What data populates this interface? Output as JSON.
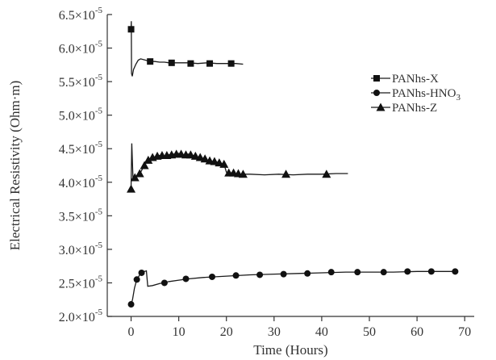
{
  "chart_data": {
    "type": "line",
    "xlabel": "Time (Hours)",
    "ylabel": "Electrical Resistivity (Ohm·m)",
    "xlim": [
      -5,
      72
    ],
    "ylim": [
      2e-05,
      6.5e-05
    ],
    "x_ticks": [
      0,
      10,
      20,
      30,
      40,
      50,
      60,
      70
    ],
    "x_tick_labels": [
      "0",
      "10",
      "20",
      "30",
      "40",
      "50",
      "60",
      "70"
    ],
    "y_ticks": [
      2e-05,
      2.5e-05,
      3e-05,
      3.5e-05,
      4e-05,
      4.5e-05,
      5e-05,
      5.5e-05,
      6e-05,
      6.5e-05
    ],
    "y_tick_labels": [
      {
        "mantissa": "2.0×10",
        "exponent": "-5"
      },
      {
        "mantissa": "2.5×10",
        "exponent": "-5"
      },
      {
        "mantissa": "3.0×10",
        "exponent": "-5"
      },
      {
        "mantissa": "3.5×10",
        "exponent": "-5"
      },
      {
        "mantissa": "4.0×10",
        "exponent": "-5"
      },
      {
        "mantissa": "4.5×10",
        "exponent": "-5"
      },
      {
        "mantissa": "5.0×10",
        "exponent": "-5"
      },
      {
        "mantissa": "5.5×10",
        "exponent": "-5"
      },
      {
        "mantissa": "6.0×10",
        "exponent": "-5"
      },
      {
        "mantissa": "6.5×10",
        "exponent": "-5"
      }
    ],
    "grid": false,
    "legend_position": "right",
    "series": [
      {
        "name": "PANhs-X",
        "marker": "square",
        "line": [
          [
            0,
            6.28e-05
          ],
          [
            0.05,
            6.4e-05
          ],
          [
            0.1,
            5.62e-05
          ],
          [
            0.25,
            5.58e-05
          ],
          [
            0.5,
            5.68e-05
          ],
          [
            1,
            5.76e-05
          ],
          [
            1.5,
            5.82e-05
          ],
          [
            2,
            5.84e-05
          ],
          [
            3,
            5.82e-05
          ],
          [
            4,
            5.8e-05
          ],
          [
            5,
            5.8e-05
          ],
          [
            6,
            5.79e-05
          ],
          [
            7,
            5.79e-05
          ],
          [
            8,
            5.78e-05
          ],
          [
            10,
            5.78e-05
          ],
          [
            12,
            5.78e-05
          ],
          [
            14,
            5.77e-05
          ],
          [
            16,
            5.78e-05
          ],
          [
            18,
            5.77e-05
          ],
          [
            20,
            5.77e-05
          ],
          [
            22,
            5.77e-05
          ],
          [
            23.5,
            5.76e-05
          ]
        ],
        "markers": [
          [
            0,
            6.28e-05
          ],
          [
            4,
            5.8e-05
          ],
          [
            8.5,
            5.78e-05
          ],
          [
            12.5,
            5.77e-05
          ],
          [
            16.5,
            5.77e-05
          ],
          [
            21,
            5.77e-05
          ]
        ]
      },
      {
        "name": "PANhs-HNO3",
        "marker": "circle",
        "line": [
          [
            0,
            2.18e-05
          ],
          [
            0.3,
            2.25e-05
          ],
          [
            0.7,
            2.42e-05
          ],
          [
            1.2,
            2.55e-05
          ],
          [
            1.8,
            2.62e-05
          ],
          [
            2.5,
            2.66e-05
          ],
          [
            3.2,
            2.68e-05
          ],
          [
            3.5,
            2.45e-05
          ],
          [
            4.5,
            2.46e-05
          ],
          [
            6,
            2.49e-05
          ],
          [
            8,
            2.52e-05
          ],
          [
            10,
            2.54e-05
          ],
          [
            12,
            2.56e-05
          ],
          [
            15,
            2.58e-05
          ],
          [
            20,
            2.6e-05
          ],
          [
            25,
            2.62e-05
          ],
          [
            30,
            2.63e-05
          ],
          [
            35,
            2.64e-05
          ],
          [
            40,
            2.65e-05
          ],
          [
            45,
            2.66e-05
          ],
          [
            50,
            2.66e-05
          ],
          [
            55,
            2.66e-05
          ],
          [
            60,
            2.67e-05
          ],
          [
            65,
            2.67e-05
          ],
          [
            68,
            2.67e-05
          ]
        ],
        "markers": [
          [
            0,
            2.18e-05
          ],
          [
            1.2,
            2.55e-05
          ],
          [
            2.2,
            2.65e-05
          ],
          [
            7,
            2.5e-05
          ],
          [
            11.5,
            2.56e-05
          ],
          [
            17,
            2.59e-05
          ],
          [
            22,
            2.61e-05
          ],
          [
            27,
            2.62e-05
          ],
          [
            32,
            2.63e-05
          ],
          [
            37,
            2.64e-05
          ],
          [
            42,
            2.66e-05
          ],
          [
            47.5,
            2.66e-05
          ],
          [
            53,
            2.66e-05
          ],
          [
            58,
            2.67e-05
          ],
          [
            63,
            2.67e-05
          ],
          [
            68,
            2.67e-05
          ]
        ]
      },
      {
        "name": "PANhs-Z",
        "marker": "triangle",
        "line": [
          [
            0,
            3.9e-05
          ],
          [
            0.15,
            4.58e-05
          ],
          [
            0.4,
            4.05e-05
          ],
          [
            1,
            4.08e-05
          ],
          [
            2,
            4.15e-05
          ],
          [
            3,
            4.28e-05
          ],
          [
            4,
            4.35e-05
          ],
          [
            5,
            4.38e-05
          ],
          [
            6,
            4.4e-05
          ],
          [
            7,
            4.39e-05
          ],
          [
            8,
            4.41e-05
          ],
          [
            9,
            4.42e-05
          ],
          [
            10,
            4.43e-05
          ],
          [
            11,
            4.41e-05
          ],
          [
            12,
            4.42e-05
          ],
          [
            13,
            4.4e-05
          ],
          [
            14,
            4.38e-05
          ],
          [
            15,
            4.36e-05
          ],
          [
            16,
            4.33e-05
          ],
          [
            17,
            4.31e-05
          ],
          [
            18,
            4.3e-05
          ],
          [
            19,
            4.28e-05
          ],
          [
            19.5,
            4.27e-05
          ],
          [
            20,
            4.15e-05
          ],
          [
            21,
            4.14e-05
          ],
          [
            22,
            4.13e-05
          ],
          [
            23,
            4.12e-05
          ],
          [
            25,
            4.12e-05
          ],
          [
            28,
            4.11e-05
          ],
          [
            31,
            4.12e-05
          ],
          [
            34,
            4.11e-05
          ],
          [
            37,
            4.12e-05
          ],
          [
            40,
            4.12e-05
          ],
          [
            43,
            4.13e-05
          ],
          [
            45.5,
            4.13e-05
          ]
        ],
        "markers": [
          [
            0,
            3.9e-05
          ],
          [
            0.8,
            4.07e-05
          ],
          [
            1.8,
            4.13e-05
          ],
          [
            2.8,
            4.25e-05
          ],
          [
            3.6,
            4.33e-05
          ],
          [
            4.5,
            4.37e-05
          ],
          [
            5.5,
            4.39e-05
          ],
          [
            6.5,
            4.4e-05
          ],
          [
            7.5,
            4.4e-05
          ],
          [
            8.5,
            4.41e-05
          ],
          [
            9.5,
            4.42e-05
          ],
          [
            10.5,
            4.42e-05
          ],
          [
            11.5,
            4.41e-05
          ],
          [
            12.5,
            4.41e-05
          ],
          [
            13.5,
            4.39e-05
          ],
          [
            14.5,
            4.37e-05
          ],
          [
            15.5,
            4.35e-05
          ],
          [
            16.5,
            4.32e-05
          ],
          [
            17.5,
            4.31e-05
          ],
          [
            18.5,
            4.29e-05
          ],
          [
            19.5,
            4.27e-05
          ],
          [
            20.5,
            4.14e-05
          ],
          [
            21.5,
            4.14e-05
          ],
          [
            22.5,
            4.13e-05
          ],
          [
            23.5,
            4.12e-05
          ],
          [
            32.5,
            4.12e-05
          ],
          [
            41,
            4.12e-05
          ]
        ]
      }
    ],
    "legend": [
      {
        "text": "PANhs-X",
        "subscript": "",
        "series_index": 0
      },
      {
        "text": "PANhs-HNO",
        "subscript": "3",
        "series_index": 1
      },
      {
        "text": "PANhs-Z",
        "subscript": "",
        "series_index": 2
      }
    ]
  }
}
